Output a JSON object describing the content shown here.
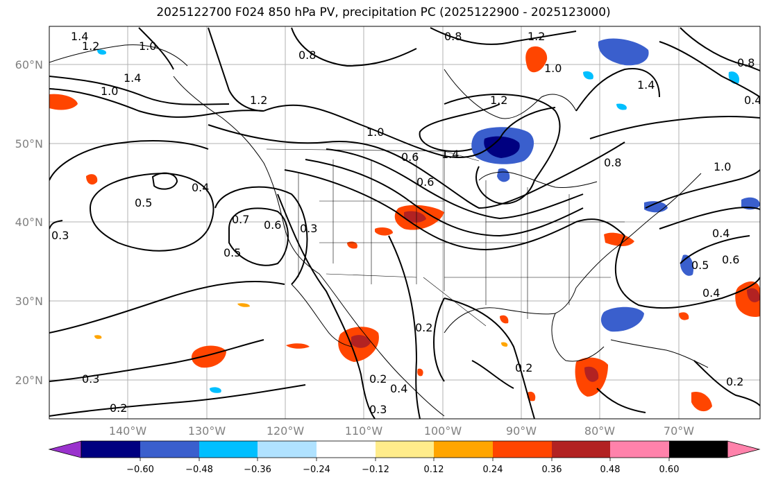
{
  "title": "2025122700 F024 850 hPa PV, precipitation PC (2025122900 - 2025123000)",
  "map": {
    "lat_labels": [
      "60°N",
      "50°N",
      "40°N",
      "30°N",
      "20°N"
    ],
    "lon_labels": [
      "140°W",
      "130°W",
      "120°W",
      "110°W",
      "100°W",
      "90°W",
      "80°W",
      "70°W"
    ],
    "contour_labels": [
      "1.4",
      "1.2",
      "1.0",
      "1.4",
      "1.0",
      "1.2",
      "0.8",
      "0.8",
      "1.2",
      "1.0",
      "1.2",
      "1.0",
      "1.4",
      "1.4",
      "0.8",
      "1.0",
      "0.8",
      "0.6",
      "0.6",
      "0.5",
      "0.4",
      "0.7",
      "0.6",
      "0.3",
      "0.5",
      "0.3",
      "0.4",
      "0.5",
      "0.6",
      "0.4",
      "0.2",
      "0.2",
      "0.2",
      "0.4",
      "0.3",
      "0.2",
      "0.3",
      "0.2",
      "0.4"
    ],
    "land_color": "#ffffff",
    "grid_color": "#b0b0b0"
  },
  "colorbar": {
    "ticks": [
      "−0.60",
      "−0.48",
      "−0.36",
      "−0.24",
      "−0.12",
      "0.12",
      "0.24",
      "0.36",
      "0.48",
      "0.60"
    ],
    "colors": [
      "#9a32cd",
      "#000080",
      "#3a5fcd",
      "#00bfff",
      "#b0e2ff",
      "#ffffff",
      "#ffec8b",
      "#ffa500",
      "#ff4500",
      "#b22222",
      "#ff82ab"
    ]
  }
}
